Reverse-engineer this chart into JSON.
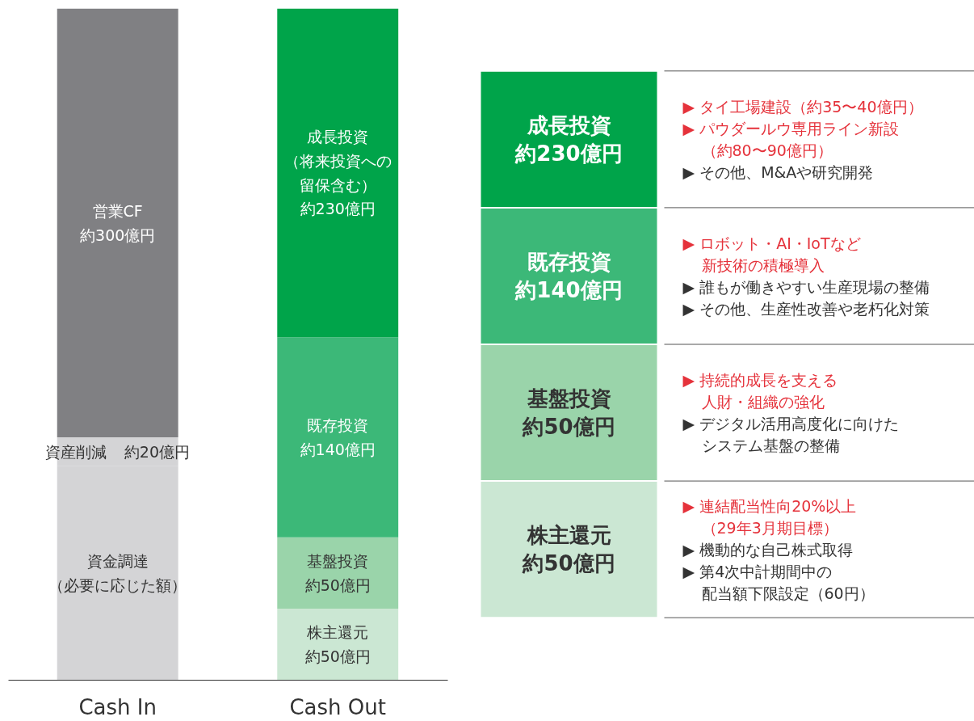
{
  "chart_data": [
    {
      "type": "bar",
      "stacked": true,
      "categories": [
        "Cash In",
        "Cash Out"
      ],
      "tick_labels": "x",
      "grid": false,
      "series": [
        {
          "name": "資金調達",
          "color": "#d4d4d6",
          "values": [
            150,
            null
          ],
          "value_labels": [
            "（必要に応じた額）",
            null
          ]
        },
        {
          "name": "株主還元",
          "color": "#cbe7d3",
          "values": [
            null,
            50
          ],
          "value_labels": [
            null,
            "約50億円"
          ]
        },
        {
          "name": "資産削減",
          "color": "#d4d4d6",
          "values": [
            20,
            null
          ],
          "value_labels": [
            "約20億円",
            null
          ]
        },
        {
          "name": "基盤投資",
          "color": "#9ad4aa",
          "values": [
            null,
            50
          ],
          "value_labels": [
            null,
            "約50億円"
          ]
        },
        {
          "name": "営業CF",
          "color": "#808083",
          "values": [
            300,
            null
          ],
          "value_labels": [
            "約300億円",
            null
          ]
        },
        {
          "name": "既存投資",
          "color": "#3cb878",
          "values": [
            null,
            140
          ],
          "value_labels": [
            null,
            "約140億円"
          ]
        },
        {
          "name": "成長投資",
          "color": "#00a44a",
          "values": [
            null,
            230
          ],
          "value_labels": [
            null,
            [
              "（将来投資への",
              "留保含む）",
              "約230億円"
            ]
          ]
        }
      ]
    },
    {
      "type": "other",
      "y_categories": [
        "成長投資",
        "既存投資",
        "基盤投資",
        "株主還元"
      ],
      "colors": [
        "#00a44a",
        "#3cb878",
        "#9ad4aa",
        "#cbe7d3"
      ],
      "cell_labels": [
        [
          "約230億円",
          [
            [
              "▶ タイ工場建設（約35〜40億円）"
            ],
            [
              "▶ パウダールウ専用ライン新設",
              "（約80〜90億円）"
            ]
          ],
          [
            [
              "▶ その他、M&Aや研究開発"
            ]
          ]
        ],
        [
          "約140億円",
          [
            [
              "▶ ロボット・AI・IoTなど",
              "新技術の積極導入"
            ]
          ],
          [
            [
              "▶ 誰もが働きやすい生産現場の整備"
            ],
            [
              "▶ その他、生産性改善や老朽化対策"
            ]
          ]
        ],
        [
          "約50億円",
          [
            [
              "▶ 持続的成長を支える",
              "人財・組織の強化"
            ]
          ],
          [
            [
              "▶ デジタル活用高度化に向けた",
              "システム基盤の整備"
            ]
          ]
        ],
        [
          "約50億円",
          [
            [
              "▶ 連結配当性向20%以上",
              "（29年3月期目標）"
            ]
          ],
          [
            [
              "▶ 機動的な自己株式取得"
            ],
            [
              "▶ 第4次中計期間中の",
              "配当額下限設定（60円）"
            ]
          ]
        ]
      ]
    }
  ]
}
